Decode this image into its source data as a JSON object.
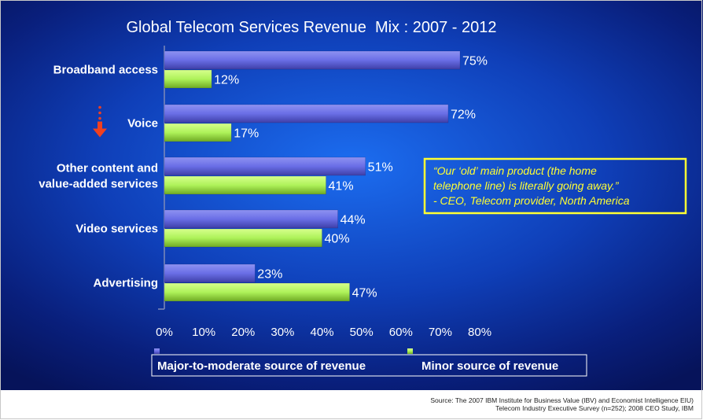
{
  "chart_data": {
    "type": "bar",
    "orientation": "horizontal",
    "title": "Global Telecom Services Revenue  Mix : 2007 - 2012",
    "categories": [
      {
        "lines": [
          "Broadband access"
        ]
      },
      {
        "lines": [
          "Voice"
        ]
      },
      {
        "lines": [
          "Other content and",
          "value-added services"
        ]
      },
      {
        "lines": [
          "Video services"
        ]
      },
      {
        "lines": [
          "Advertising"
        ]
      }
    ],
    "series": [
      {
        "name": "Major-to-moderate source of revenue",
        "values": [
          75,
          72,
          51,
          44,
          23
        ],
        "labels": [
          "75%",
          "72%",
          "51%",
          "44%",
          "23%"
        ],
        "color": "#6a6ee6"
      },
      {
        "name": "Minor source of revenue",
        "values": [
          12,
          17,
          41,
          40,
          47
        ],
        "labels": [
          "12%",
          "17%",
          "41%",
          "40%",
          "47%"
        ],
        "color": "#aef25a"
      }
    ],
    "xlim": [
      0,
      80
    ],
    "xticks": [
      "0%",
      "10%",
      "20%",
      "30%",
      "40%",
      "50%",
      "60%",
      "70%",
      "80%"
    ],
    "legend_position": "bottom",
    "annotation": {
      "lines": [
        "“Our ‘old’ main product (the home",
        "telephone line) is literally going away.”",
        "- CEO, Telecom provider, North America"
      ],
      "color": "#ffff33"
    },
    "decline_marker": {
      "category": "Voice",
      "color": "#f04020"
    }
  },
  "source": {
    "lines": [
      "Source: The 2007 IBM Institute for Business Value (IBV)  and Economist Intelligence EIU)",
      "Telecom Industry Executive Survey (n=252); 2008 CEO Study, IBM"
    ]
  }
}
